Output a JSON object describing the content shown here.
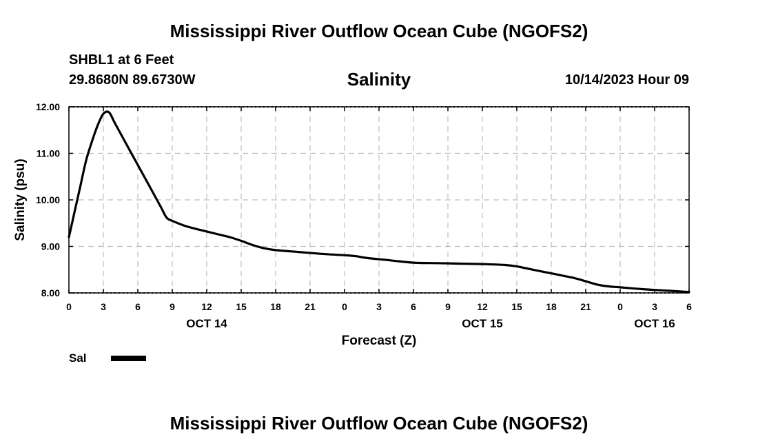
{
  "header": {
    "title": "Mississippi River Outflow Ocean Cube (NGOFS2)",
    "station": "SHBL1 at 6 Feet",
    "coords": "29.8680N  89.6730W",
    "timestamp": "10/14/2023 Hour 09"
  },
  "footer": {
    "title": "Mississippi River Outflow Ocean Cube (NGOFS2)"
  },
  "legend": {
    "label": "Sal"
  },
  "chart_data": {
    "type": "line",
    "title": "Salinity",
    "xlabel": "Forecast (Z)",
    "ylabel": "Salinity (psu)",
    "xlim": [
      0,
      54
    ],
    "ylim": [
      8.0,
      12.0
    ],
    "grid": true,
    "x_ticks": [
      0,
      3,
      6,
      9,
      12,
      15,
      18,
      21,
      24,
      27,
      30,
      33,
      36,
      39,
      42,
      45,
      48,
      51,
      54
    ],
    "x_tick_labels": [
      "0",
      "3",
      "6",
      "9",
      "12",
      "15",
      "18",
      "21",
      "0",
      "3",
      "6",
      "9",
      "12",
      "15",
      "18",
      "21",
      "0",
      "3",
      "6"
    ],
    "date_labels": [
      {
        "x": 12,
        "label": "OCT 14"
      },
      {
        "x": 36,
        "label": "OCT 15"
      },
      {
        "x": 51,
        "label": "OCT 16"
      }
    ],
    "y_ticks": [
      8.0,
      9.0,
      10.0,
      11.0,
      12.0
    ],
    "y_tick_labels": [
      "8.00",
      "9.00",
      "10.00",
      "11.00",
      "12.00"
    ],
    "series": [
      {
        "name": "Sal",
        "color": "#000000",
        "x": [
          0,
          0.5,
          1,
          1.5,
          2,
          2.5,
          3,
          3.5,
          4,
          5,
          6,
          7,
          8,
          8.5,
          9,
          10,
          11,
          12,
          13,
          14,
          15,
          16,
          17,
          18,
          20,
          22,
          24,
          25,
          26,
          28,
          30,
          32,
          34,
          36,
          38,
          39,
          40,
          42,
          44,
          45,
          46,
          47,
          48,
          50,
          52,
          54
        ],
        "values": [
          9.2,
          9.75,
          10.3,
          10.85,
          11.25,
          11.6,
          11.85,
          11.88,
          11.65,
          11.2,
          10.75,
          10.3,
          9.85,
          9.62,
          9.55,
          9.45,
          9.38,
          9.32,
          9.26,
          9.2,
          9.12,
          9.03,
          8.96,
          8.92,
          8.88,
          8.84,
          8.81,
          8.79,
          8.75,
          8.7,
          8.65,
          8.64,
          8.63,
          8.62,
          8.6,
          8.57,
          8.52,
          8.42,
          8.32,
          8.25,
          8.18,
          8.14,
          8.12,
          8.08,
          8.05,
          8.02
        ]
      }
    ]
  }
}
